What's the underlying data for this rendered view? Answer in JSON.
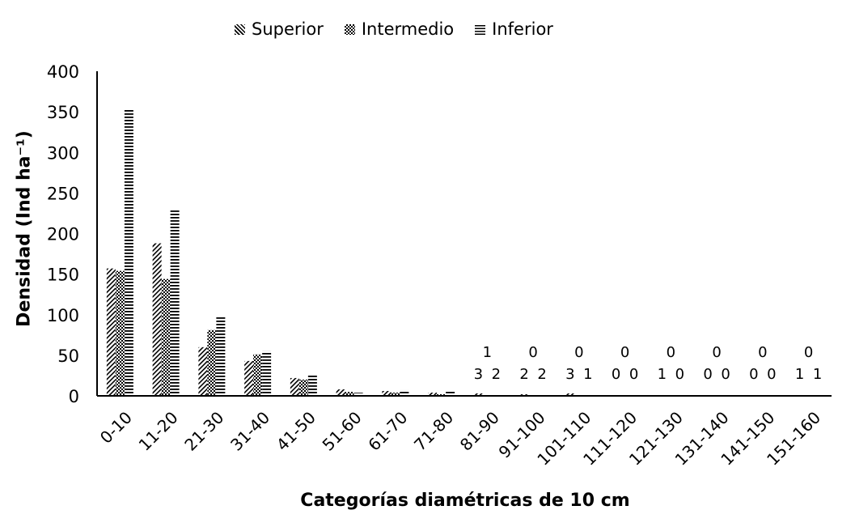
{
  "chart_data": {
    "type": "bar",
    "xlabel": "Categorías diamétricas de 10 cm",
    "ylabel": "Densidad (Ind ha⁻¹)",
    "ylim": [
      0,
      400
    ],
    "yticks": [
      0,
      50,
      100,
      150,
      200,
      250,
      300,
      350,
      400
    ],
    "grid": false,
    "legend_position": "top-center",
    "categories": [
      "0-10",
      "11-20",
      "21-30",
      "31-40",
      "41-50",
      "51-60",
      "61-70",
      "71-80",
      "81-90",
      "91-100",
      "101-110",
      "111-120",
      "121-130",
      "131-140",
      "141-150",
      "151-160"
    ],
    "series": [
      {
        "name": "Superior",
        "pattern": "dotted",
        "color": "#000000",
        "values": [
          157,
          188,
          60,
          43,
          22,
          8,
          6,
          4,
          3,
          2,
          3,
          0,
          1,
          0,
          0,
          1
        ]
      },
      {
        "name": "Intermedio",
        "pattern": "checker",
        "color": "#000000",
        "values": [
          154,
          144,
          81,
          51,
          20,
          5,
          4,
          2,
          1,
          0,
          0,
          0,
          0,
          0,
          0,
          0
        ]
      },
      {
        "name": "Inferior",
        "pattern": "horizontal-lines",
        "color": "#000000",
        "values": [
          353,
          229,
          97,
          55,
          26,
          4,
          7,
          6,
          2,
          2,
          1,
          0,
          0,
          0,
          0,
          1
        ]
      }
    ],
    "data_labels": [
      {
        "category": "81-90",
        "labels": [
          {
            "text": "3"
          },
          {
            "text": "2"
          },
          {
            "text": "1",
            "upper": true
          }
        ]
      },
      {
        "category": "91-100",
        "labels": [
          {
            "text": "2"
          },
          {
            "text": "2"
          },
          {
            "text": "0",
            "upper": true
          }
        ]
      },
      {
        "category": "101-110",
        "labels": [
          {
            "text": "3"
          },
          {
            "text": "1"
          },
          {
            "text": "0",
            "upper": true
          }
        ]
      },
      {
        "category": "111-120",
        "labels": [
          {
            "text": "0"
          },
          {
            "text": "0"
          },
          {
            "text": "0",
            "upper": true
          }
        ]
      },
      {
        "category": "121-130",
        "labels": [
          {
            "text": "1"
          },
          {
            "text": "0"
          },
          {
            "text": "0",
            "upper": true
          }
        ]
      },
      {
        "category": "131-140",
        "labels": [
          {
            "text": "0"
          },
          {
            "text": "0"
          },
          {
            "text": "0",
            "upper": true
          }
        ]
      },
      {
        "category": "141-150",
        "labels": [
          {
            "text": "0"
          },
          {
            "text": "0"
          },
          {
            "text": "0",
            "upper": true
          }
        ]
      },
      {
        "category": "151-160",
        "labels": [
          {
            "text": "1"
          },
          {
            "text": "1"
          },
          {
            "text": "0",
            "upper": true
          }
        ]
      }
    ]
  }
}
